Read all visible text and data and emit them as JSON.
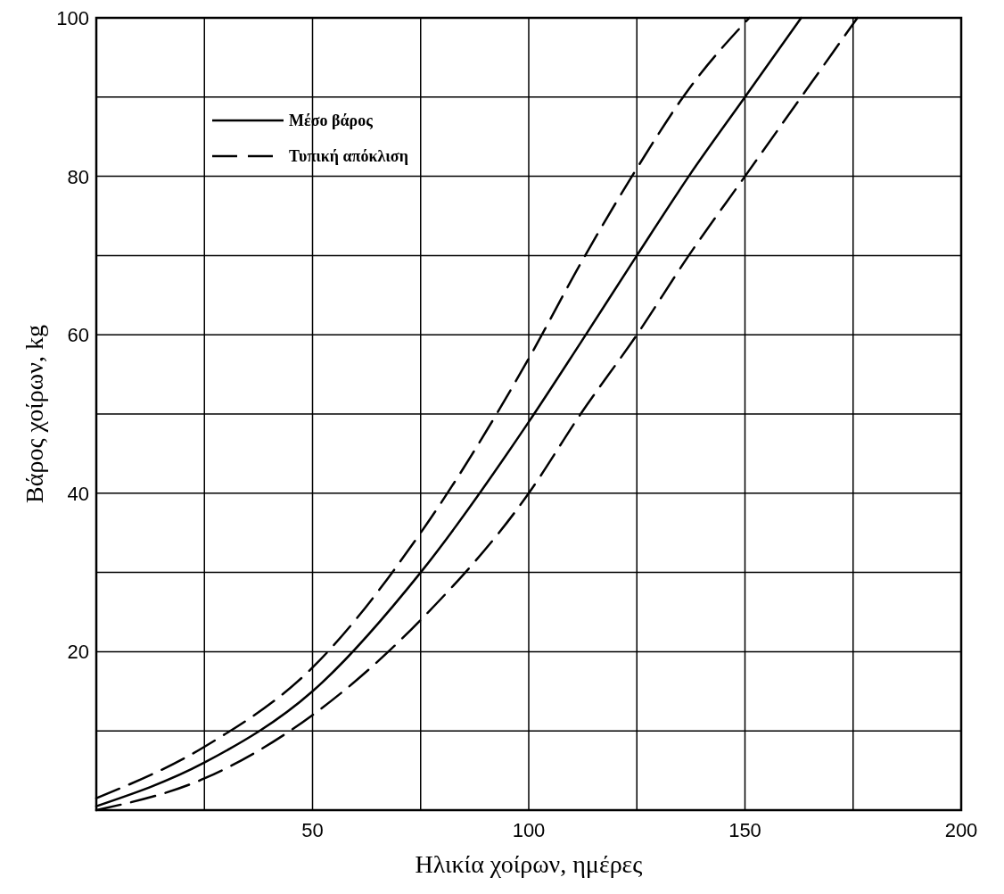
{
  "chart_data": {
    "type": "line",
    "xlabel": "Ηλικία χοίρων, ημέρες",
    "ylabel": "Βάρος χοίρων, kg",
    "xlim": [
      0,
      200
    ],
    "ylim": [
      0,
      100
    ],
    "xticks": [
      {
        "value": 25,
        "label": null
      },
      50,
      {
        "value": 75,
        "label": null
      },
      100,
      {
        "value": 125,
        "label": null
      },
      150,
      {
        "value": 175,
        "label": null
      },
      200
    ],
    "yticks": [
      {
        "value": 10,
        "label": null
      },
      20,
      {
        "value": 30,
        "label": null
      },
      40,
      {
        "value": 50,
        "label": null
      },
      60,
      {
        "value": 70,
        "label": null
      },
      80,
      {
        "value": 90,
        "label": null
      },
      100
    ],
    "grid": true,
    "legend": "top left",
    "marker": "none",
    "series": [
      {
        "name": "Μέσο βάρος",
        "color": "#000000",
        "line_style": "solid",
        "x": [
          0,
          25,
          50,
          75,
          100,
          112,
          125,
          137,
          150,
          163
        ],
        "values": [
          0.5,
          6,
          15,
          30,
          49,
          59,
          70,
          80,
          90,
          100
        ]
      },
      {
        "name": "Τυπική απόκλιση",
        "color": "#000000",
        "line_style": "dashed",
        "x": [
          0,
          25,
          50,
          75,
          100,
          112,
          125,
          137,
          151
        ],
        "values": [
          1.5,
          8,
          18,
          35,
          57,
          69,
          81,
          91,
          100
        ]
      },
      {
        "color": "#000000",
        "line_style": "dashed",
        "x": [
          0,
          25,
          50,
          75,
          100,
          112,
          125,
          137,
          150,
          163,
          176
        ],
        "values": [
          0,
          4,
          12,
          24,
          40,
          50,
          60,
          70,
          80,
          90,
          100
        ]
      }
    ]
  }
}
